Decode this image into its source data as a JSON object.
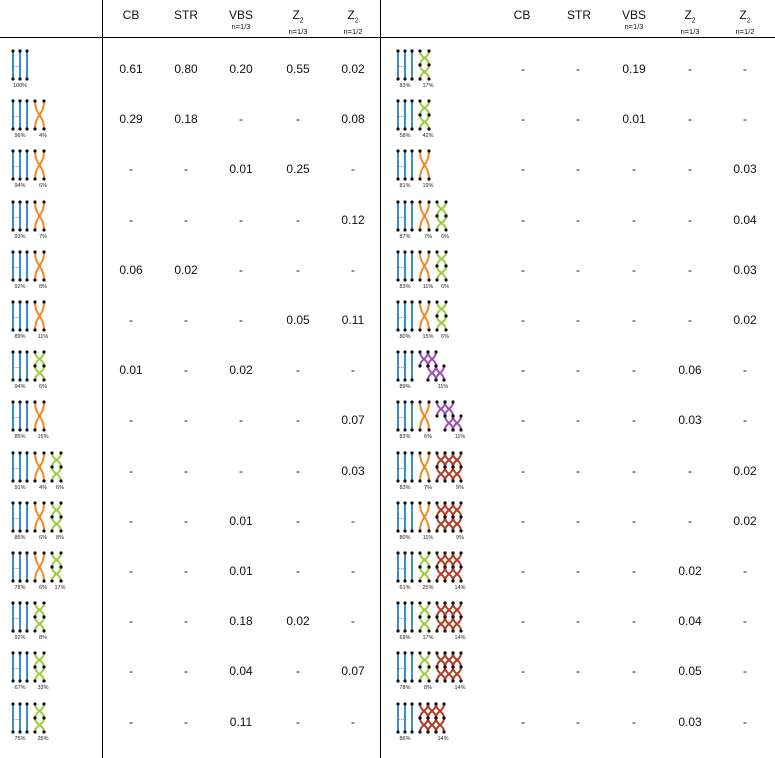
{
  "headers": {
    "left": [
      {
        "main": "CB",
        "sub": ""
      },
      {
        "main": "STR",
        "sub": ""
      },
      {
        "main": "VBS",
        "sub": "n=1/3"
      },
      {
        "main": "Z",
        "idx": "2",
        "sub": "n=1/3"
      },
      {
        "main": "Z",
        "idx": "2",
        "sub": "n=1/2"
      }
    ],
    "right": [
      {
        "main": "CB",
        "sub": ""
      },
      {
        "main": "STR",
        "sub": ""
      },
      {
        "main": "VBS",
        "sub": "n=1/3"
      },
      {
        "main": "Z",
        "idx": "2",
        "sub": "n=1/3"
      },
      {
        "main": "Z",
        "idx": "2",
        "sub": "n=1/2"
      }
    ]
  },
  "colors": {
    "blue": "#3b8fd0",
    "orange": "#f08a24",
    "green": "#9ccb3f",
    "purple": "#9b4fb7",
    "red": "#b53a24",
    "dot": "#111111"
  },
  "ellipsis": "...",
  "left_rows": [
    {
      "groups": [
        [
          "blue",
          "100%"
        ]
      ],
      "values": [
        "0.61",
        "0.80",
        "0.20",
        "0.55",
        "0.02"
      ]
    },
    {
      "groups": [
        [
          "blue",
          "96%"
        ],
        [
          "orange",
          "4%"
        ]
      ],
      "values": [
        "0.29",
        "0.18",
        "-",
        "-",
        "0.08"
      ]
    },
    {
      "groups": [
        [
          "blue",
          "94%"
        ],
        [
          "orange",
          "6%"
        ]
      ],
      "values": [
        "-",
        "-",
        "0.01",
        "0.25",
        "-"
      ]
    },
    {
      "groups": [
        [
          "blue",
          "93%"
        ],
        [
          "orange",
          "7%"
        ]
      ],
      "values": [
        "-",
        "-",
        "-",
        "-",
        "0.12"
      ]
    },
    {
      "groups": [
        [
          "blue",
          "92%"
        ],
        [
          "orange",
          "8%"
        ]
      ],
      "values": [
        "0.06",
        "0.02",
        "-",
        "-",
        "-"
      ]
    },
    {
      "groups": [
        [
          "blue",
          "89%"
        ],
        [
          "orange",
          "11%"
        ]
      ],
      "values": [
        "-",
        "-",
        "-",
        "0.05",
        "0.11"
      ]
    },
    {
      "groups": [
        [
          "blue",
          "94%"
        ],
        [
          "green",
          "6%"
        ]
      ],
      "values": [
        "0.01",
        "-",
        "0.02",
        "-",
        "-"
      ]
    },
    {
      "groups": [
        [
          "blue",
          "85%"
        ],
        [
          "orange",
          "15%"
        ]
      ],
      "values": [
        "-",
        "-",
        "-",
        "-",
        "0.07"
      ]
    },
    {
      "groups": [
        [
          "blue",
          "91%"
        ],
        [
          "orange",
          "4%"
        ],
        [
          "green",
          "6%"
        ]
      ],
      "values": [
        "-",
        "-",
        "-",
        "-",
        "0.03"
      ]
    },
    {
      "groups": [
        [
          "blue",
          "86%"
        ],
        [
          "orange",
          "6%"
        ],
        [
          "green",
          "8%"
        ]
      ],
      "values": [
        "-",
        "-",
        "0.01",
        "-",
        "-"
      ]
    },
    {
      "groups": [
        [
          "blue",
          "78%"
        ],
        [
          "orange",
          "6%"
        ],
        [
          "green",
          "17%"
        ]
      ],
      "values": [
        "-",
        "-",
        "0.01",
        "-",
        "-"
      ]
    },
    {
      "groups": [
        [
          "blue",
          "92%"
        ],
        [
          "green",
          "8%"
        ]
      ],
      "values": [
        "-",
        "-",
        "0.18",
        "0.02",
        "-"
      ]
    },
    {
      "groups": [
        [
          "blue",
          "67%"
        ],
        [
          "green",
          "33%"
        ]
      ],
      "values": [
        "-",
        "-",
        "0.04",
        "-",
        "0.07"
      ]
    },
    {
      "groups": [
        [
          "blue",
          "75%"
        ],
        [
          "green",
          "25%"
        ]
      ],
      "values": [
        "-",
        "-",
        "0.11",
        "-",
        "-"
      ]
    }
  ],
  "right_rows": [
    {
      "groups": [
        [
          "blue",
          "83%"
        ],
        [
          "green",
          "17%"
        ]
      ],
      "values": [
        "-",
        "-",
        "0.19",
        "-",
        "-"
      ]
    },
    {
      "groups": [
        [
          "blue",
          "58%"
        ],
        [
          "green",
          "42%"
        ]
      ],
      "values": [
        "-",
        "-",
        "0.01",
        "-",
        "-"
      ]
    },
    {
      "groups": [
        [
          "blue",
          "81%"
        ],
        [
          "orange",
          "19%"
        ]
      ],
      "values": [
        "-",
        "-",
        "-",
        "-",
        "0.03"
      ]
    },
    {
      "groups": [
        [
          "blue",
          "87%"
        ],
        [
          "orange",
          "7%"
        ],
        [
          "green",
          "6%"
        ]
      ],
      "values": [
        "-",
        "-",
        "-",
        "-",
        "0.04"
      ]
    },
    {
      "groups": [
        [
          "blue",
          "83%"
        ],
        [
          "orange",
          "11%"
        ],
        [
          "green",
          "6%"
        ]
      ],
      "values": [
        "-",
        "-",
        "-",
        "-",
        "0.03"
      ]
    },
    {
      "groups": [
        [
          "blue",
          "80%"
        ],
        [
          "orange",
          "15%"
        ],
        [
          "green",
          "6%"
        ]
      ],
      "values": [
        "-",
        "-",
        "-",
        "-",
        "0.02"
      ]
    },
    {
      "groups": [
        [
          "blue",
          "89%"
        ],
        [
          "purple",
          "11%"
        ]
      ],
      "values": [
        "-",
        "-",
        "-",
        "0.06",
        "-"
      ]
    },
    {
      "groups": [
        [
          "blue",
          "83%"
        ],
        [
          "orange",
          "6%"
        ],
        [
          "purple",
          "11%"
        ]
      ],
      "values": [
        "-",
        "-",
        "-",
        "0.03",
        "-"
      ]
    },
    {
      "groups": [
        [
          "blue",
          "83%"
        ],
        [
          "orange",
          "7%"
        ],
        [
          "red",
          "9%"
        ]
      ],
      "values": [
        "-",
        "-",
        "-",
        "-",
        "0.02"
      ]
    },
    {
      "groups": [
        [
          "blue",
          "80%"
        ],
        [
          "orange",
          "11%"
        ],
        [
          "red",
          "9%"
        ]
      ],
      "values": [
        "-",
        "-",
        "-",
        "-",
        "0.02"
      ]
    },
    {
      "groups": [
        [
          "blue",
          "61%"
        ],
        [
          "green",
          "25%"
        ],
        [
          "red",
          "14%"
        ]
      ],
      "values": [
        "-",
        "-",
        "-",
        "0.02",
        "-"
      ]
    },
    {
      "groups": [
        [
          "blue",
          "69%"
        ],
        [
          "green",
          "17%"
        ],
        [
          "red",
          "14%"
        ]
      ],
      "values": [
        "-",
        "-",
        "-",
        "0.04",
        "-"
      ]
    },
    {
      "groups": [
        [
          "blue",
          "78%"
        ],
        [
          "green",
          "8%"
        ],
        [
          "red",
          "14%"
        ]
      ],
      "values": [
        "-",
        "-",
        "-",
        "0.05",
        "-"
      ]
    },
    {
      "groups": [
        [
          "blue",
          "86%"
        ],
        [
          "red",
          "14%"
        ]
      ],
      "values": [
        "-",
        "-",
        "-",
        "0.03",
        "-"
      ]
    }
  ]
}
